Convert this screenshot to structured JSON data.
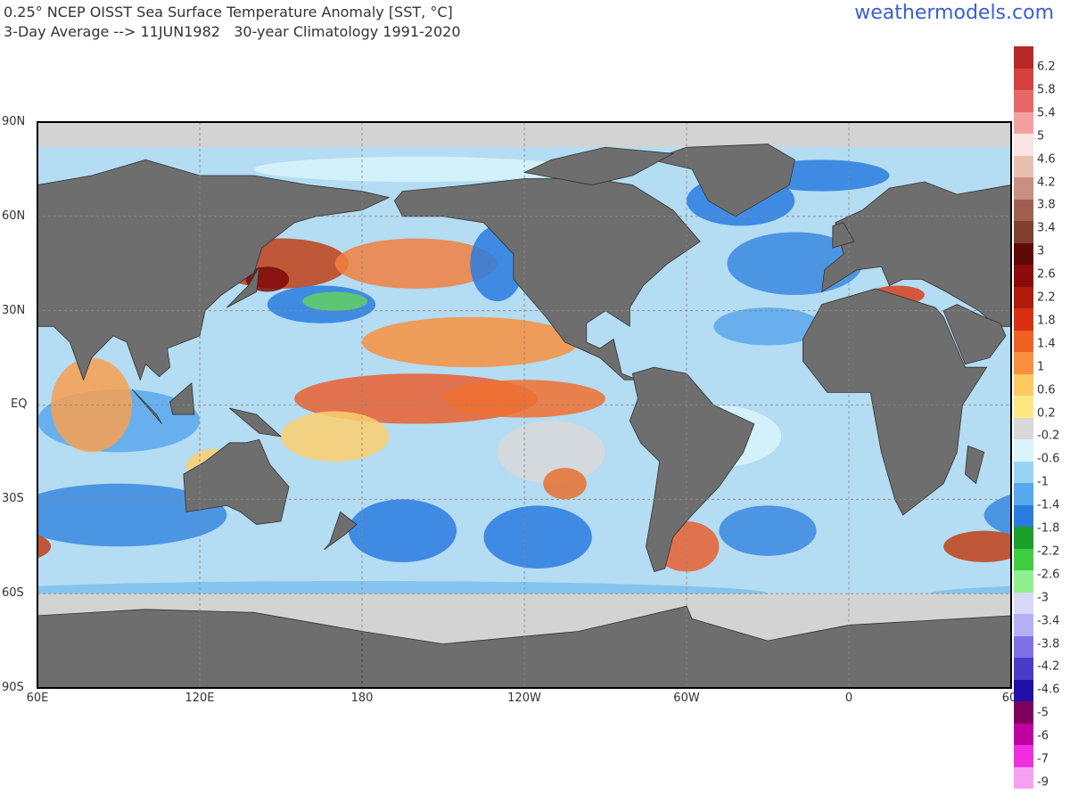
{
  "header": {
    "title_line1": "0.25° NCEP OISST Sea Surface Temperature Anomaly [SST, °C]",
    "title_line2": "3-Day Average --> 11JUN1982   30-year Climatology 1991-2020",
    "brand": "weathermodels.com"
  },
  "map": {
    "lat_labels": [
      "90N",
      "60N",
      "30N",
      "EQ",
      "30S",
      "60S",
      "90S"
    ],
    "lon_labels": [
      "60E",
      "120E",
      "180",
      "120W",
      "60W",
      "0",
      "60"
    ],
    "land_color": "#6e6e6e",
    "ice_color": "#d3d3d3"
  },
  "colorbar": {
    "labels": [
      "6.2",
      "5.8",
      "5.4",
      "5",
      "4.6",
      "4.2",
      "3.8",
      "3.4",
      "3",
      "2.6",
      "2.2",
      "1.8",
      "1.4",
      "1",
      "0.6",
      "0.2",
      "-0.2",
      "-0.6",
      "-1",
      "-1.4",
      "-1.8",
      "-2.2",
      "-2.6",
      "-3",
      "-3.4",
      "-3.8",
      "-4.2",
      "-4.6",
      "-5",
      "-6",
      "-7",
      "-9"
    ],
    "colors": [
      "#b82828",
      "#d84040",
      "#e86868",
      "#f4a0a0",
      "#fbe4e4",
      "#e8c0b0",
      "#c89080",
      "#a06050",
      "#804030",
      "#600808",
      "#8c0c0c",
      "#b01a0a",
      "#d83010",
      "#f06020",
      "#f89040",
      "#fcc860",
      "#fce880",
      "#d8d8d8",
      "#d8f4fc",
      "#98d4f4",
      "#58a8ec",
      "#2a7ce0",
      "#1aa028",
      "#40cc40",
      "#90f090",
      "#d8d8f8",
      "#b8b0f4",
      "#8070e8",
      "#4a3cc8",
      "#2010a8",
      "#800060",
      "#c000a0",
      "#f030e0",
      "#f8a0f0"
    ]
  }
}
